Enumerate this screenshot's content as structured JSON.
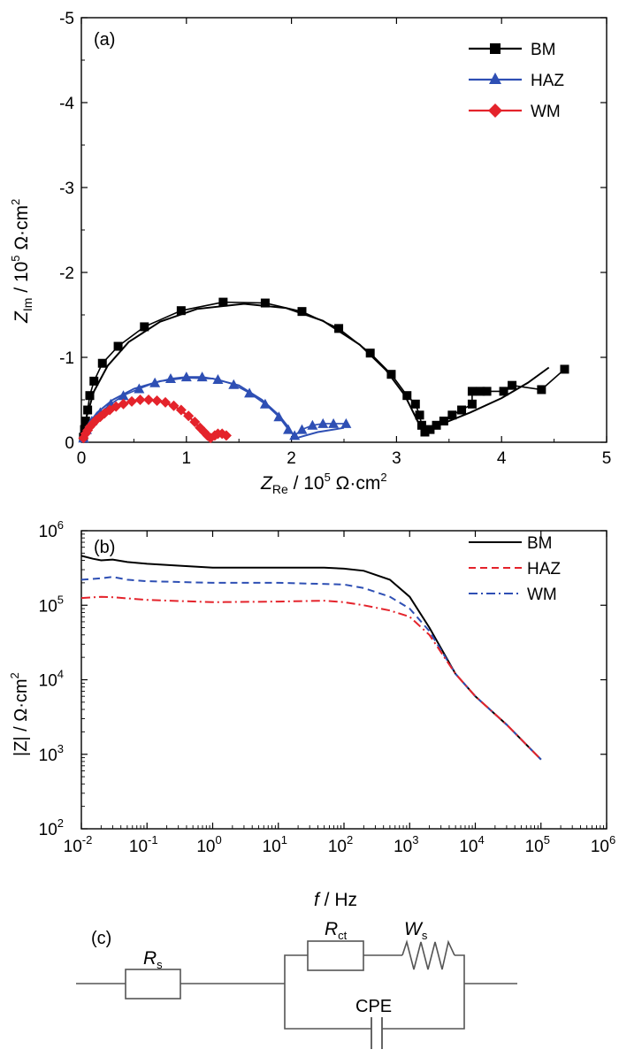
{
  "figure": {
    "panel_a": {
      "label": "(a)",
      "xlabel": {
        "main": "Z",
        "sub": "Re",
        "rest": " / 10",
        "exp": "5",
        "unit": " Ω·cm",
        "unit_exp": "2"
      },
      "ylabel": {
        "main": "Z",
        "sub": "Im",
        "rest": " / 10",
        "exp": "5",
        "unit": " Ω·cm",
        "unit_exp": "2"
      }
    },
    "panel_b": {
      "label": "(b)",
      "xlabel": {
        "main": "f",
        "rest": " / Hz"
      },
      "ylabel": {
        "text": "|Z| / Ω·cm",
        "unit_exp": "2"
      }
    },
    "panel_c": {
      "label": "(c)",
      "rs": {
        "main": "R",
        "sub": "s"
      },
      "rct": {
        "main": "R",
        "sub": "ct"
      },
      "ws": {
        "main": "W",
        "sub": "s"
      },
      "cpe": "CPE"
    }
  },
  "colors": {
    "BM": "#000000",
    "HAZ": "#2e4fb4",
    "WM": "#e4232b"
  },
  "chart_data": [
    {
      "type": "scatter",
      "panel": "(a)",
      "xlim": [
        0,
        5
      ],
      "ylim": [
        0,
        -5
      ],
      "x_ticks": [
        0,
        1,
        2,
        3,
        4,
        5
      ],
      "y_ticks": [
        0,
        -1,
        -2,
        -3,
        -4,
        -5
      ],
      "legend": {
        "placement": "top-right",
        "entries": [
          "BM",
          "HAZ",
          "WM"
        ]
      },
      "series": [
        {
          "name": "BM",
          "marker": "square",
          "points": [
            [
              0.02,
              -0.06
            ],
            [
              0.03,
              -0.15
            ],
            [
              0.04,
              -0.25
            ],
            [
              0.06,
              -0.38
            ],
            [
              0.08,
              -0.55
            ],
            [
              0.12,
              -0.72
            ],
            [
              0.2,
              -0.93
            ],
            [
              0.35,
              -1.13
            ],
            [
              0.6,
              -1.36
            ],
            [
              0.95,
              -1.55
            ],
            [
              1.35,
              -1.65
            ],
            [
              1.75,
              -1.64
            ],
            [
              2.1,
              -1.54
            ],
            [
              2.45,
              -1.34
            ],
            [
              2.75,
              -1.05
            ],
            [
              2.95,
              -0.8
            ],
            [
              3.1,
              -0.55
            ],
            [
              3.18,
              -0.45
            ],
            [
              3.22,
              -0.32
            ],
            [
              3.24,
              -0.2
            ],
            [
              3.27,
              -0.12
            ],
            [
              3.32,
              -0.15
            ],
            [
              3.38,
              -0.2
            ],
            [
              3.45,
              -0.25
            ],
            [
              3.53,
              -0.32
            ],
            [
              3.62,
              -0.38
            ],
            [
              3.72,
              -0.45
            ],
            [
              3.72,
              -0.6
            ],
            [
              3.8,
              -0.6
            ],
            [
              3.86,
              -0.6
            ],
            [
              4.02,
              -0.6
            ],
            [
              4.1,
              -0.67
            ],
            [
              4.38,
              -0.62
            ],
            [
              4.6,
              -0.86
            ]
          ],
          "fit": [
            [
              0.01,
              -0.05
            ],
            [
              0.05,
              -0.3
            ],
            [
              0.12,
              -0.6
            ],
            [
              0.25,
              -0.9
            ],
            [
              0.45,
              -1.18
            ],
            [
              0.75,
              -1.42
            ],
            [
              1.1,
              -1.57
            ],
            [
              1.55,
              -1.63
            ],
            [
              1.95,
              -1.58
            ],
            [
              2.3,
              -1.43
            ],
            [
              2.65,
              -1.15
            ],
            [
              2.9,
              -0.85
            ],
            [
              3.08,
              -0.55
            ],
            [
              3.2,
              -0.25
            ],
            [
              3.25,
              -0.13
            ],
            [
              3.4,
              -0.2
            ],
            [
              3.7,
              -0.35
            ],
            [
              4.0,
              -0.52
            ],
            [
              4.25,
              -0.7
            ],
            [
              4.45,
              -0.88
            ]
          ]
        },
        {
          "name": "HAZ",
          "marker": "triangle",
          "points": [
            [
              0.02,
              -0.05
            ],
            [
              0.05,
              -0.15
            ],
            [
              0.1,
              -0.25
            ],
            [
              0.18,
              -0.35
            ],
            [
              0.28,
              -0.45
            ],
            [
              0.4,
              -0.55
            ],
            [
              0.55,
              -0.63
            ],
            [
              0.7,
              -0.7
            ],
            [
              0.85,
              -0.75
            ],
            [
              1.0,
              -0.77
            ],
            [
              1.15,
              -0.77
            ],
            [
              1.3,
              -0.74
            ],
            [
              1.45,
              -0.68
            ],
            [
              1.6,
              -0.58
            ],
            [
              1.75,
              -0.45
            ],
            [
              1.88,
              -0.3
            ],
            [
              1.97,
              -0.15
            ],
            [
              2.03,
              -0.08
            ],
            [
              2.1,
              -0.15
            ],
            [
              2.2,
              -0.2
            ],
            [
              2.3,
              -0.22
            ],
            [
              2.4,
              -0.22
            ],
            [
              2.52,
              -0.22
            ]
          ],
          "fit": [
            [
              0.01,
              -0.04
            ],
            [
              0.06,
              -0.2
            ],
            [
              0.15,
              -0.35
            ],
            [
              0.3,
              -0.5
            ],
            [
              0.5,
              -0.63
            ],
            [
              0.75,
              -0.72
            ],
            [
              1.0,
              -0.76
            ],
            [
              1.25,
              -0.75
            ],
            [
              1.5,
              -0.67
            ],
            [
              1.72,
              -0.5
            ],
            [
              1.88,
              -0.32
            ],
            [
              1.97,
              -0.18
            ],
            [
              2.02,
              -0.08
            ],
            [
              2.05,
              -0.05
            ],
            [
              2.25,
              -0.12
            ],
            [
              2.5,
              -0.17
            ]
          ]
        },
        {
          "name": "WM",
          "marker": "diamond",
          "points": [
            [
              0.02,
              -0.05
            ],
            [
              0.04,
              -0.1
            ],
            [
              0.06,
              -0.14
            ],
            [
              0.08,
              -0.18
            ],
            [
              0.11,
              -0.22
            ],
            [
              0.14,
              -0.26
            ],
            [
              0.18,
              -0.3
            ],
            [
              0.22,
              -0.34
            ],
            [
              0.27,
              -0.38
            ],
            [
              0.33,
              -0.42
            ],
            [
              0.4,
              -0.45
            ],
            [
              0.48,
              -0.48
            ],
            [
              0.56,
              -0.5
            ],
            [
              0.64,
              -0.5
            ],
            [
              0.72,
              -0.49
            ],
            [
              0.8,
              -0.47
            ],
            [
              0.88,
              -0.43
            ],
            [
              0.95,
              -0.38
            ],
            [
              1.02,
              -0.31
            ],
            [
              1.08,
              -0.24
            ],
            [
              1.13,
              -0.17
            ],
            [
              1.17,
              -0.12
            ],
            [
              1.2,
              -0.08
            ],
            [
              1.23,
              -0.05
            ],
            [
              1.27,
              -0.08
            ],
            [
              1.3,
              -0.1
            ],
            [
              1.34,
              -0.1
            ],
            [
              1.38,
              -0.08
            ]
          ],
          "fit": [
            [
              0.01,
              -0.04
            ],
            [
              0.08,
              -0.2
            ],
            [
              0.2,
              -0.34
            ],
            [
              0.35,
              -0.44
            ],
            [
              0.55,
              -0.5
            ],
            [
              0.75,
              -0.49
            ],
            [
              0.92,
              -0.4
            ],
            [
              1.05,
              -0.27
            ],
            [
              1.15,
              -0.14
            ],
            [
              1.22,
              -0.06
            ],
            [
              1.3,
              -0.08
            ],
            [
              1.4,
              -0.1
            ]
          ]
        }
      ]
    },
    {
      "type": "line",
      "panel": "(b)",
      "x_scale": "log",
      "y_scale": "log",
      "xlim": [
        0.01,
        1000000
      ],
      "ylim": [
        100,
        1000000
      ],
      "x_tick_exponents": [
        -2,
        -1,
        0,
        1,
        2,
        3,
        4,
        5,
        6
      ],
      "y_tick_exponents": [
        2,
        3,
        4,
        5,
        6
      ],
      "legend": {
        "placement": "top-right",
        "entries": [
          "BM",
          "HAZ",
          "WM"
        ]
      },
      "series": [
        {
          "name": "BM",
          "style": "solid",
          "points": [
            [
              0.01,
              460000
            ],
            [
              0.015,
              420000
            ],
            [
              0.02,
              400000
            ],
            [
              0.03,
              410000
            ],
            [
              0.05,
              380000
            ],
            [
              0.1,
              360000
            ],
            [
              0.3,
              340000
            ],
            [
              1,
              320000
            ],
            [
              10,
              320000
            ],
            [
              50,
              320000
            ],
            [
              100,
              310000
            ],
            [
              200,
              290000
            ],
            [
              500,
              220000
            ],
            [
              1000,
              130000
            ],
            [
              2000,
              50000
            ],
            [
              5000,
              12000
            ],
            [
              10000,
              6000
            ],
            [
              30000,
              2500
            ],
            [
              100000,
              850
            ]
          ]
        },
        {
          "name": "HAZ",
          "style": "dashed",
          "points": [
            [
              0.01,
              220000
            ],
            [
              0.02,
              230000
            ],
            [
              0.03,
              240000
            ],
            [
              0.05,
              220000
            ],
            [
              0.1,
              210000
            ],
            [
              1,
              200000
            ],
            [
              10,
              200000
            ],
            [
              100,
              190000
            ],
            [
              200,
              170000
            ],
            [
              500,
              130000
            ],
            [
              1000,
              90000
            ],
            [
              2000,
              45000
            ],
            [
              5000,
              12000
            ],
            [
              10000,
              6000
            ],
            [
              30000,
              2500
            ],
            [
              100000,
              850
            ]
          ]
        },
        {
          "name": "WM",
          "style": "dashdot",
          "points": [
            [
              0.01,
              125000
            ],
            [
              0.02,
              130000
            ],
            [
              0.03,
              128000
            ],
            [
              0.1,
              118000
            ],
            [
              1,
              110000
            ],
            [
              10,
              112000
            ],
            [
              50,
              115000
            ],
            [
              100,
              110000
            ],
            [
              200,
              100000
            ],
            [
              500,
              85000
            ],
            [
              1000,
              70000
            ],
            [
              2000,
              40000
            ],
            [
              5000,
              12000
            ],
            [
              10000,
              6000
            ],
            [
              30000,
              2500
            ],
            [
              100000,
              850
            ]
          ]
        }
      ]
    }
  ]
}
